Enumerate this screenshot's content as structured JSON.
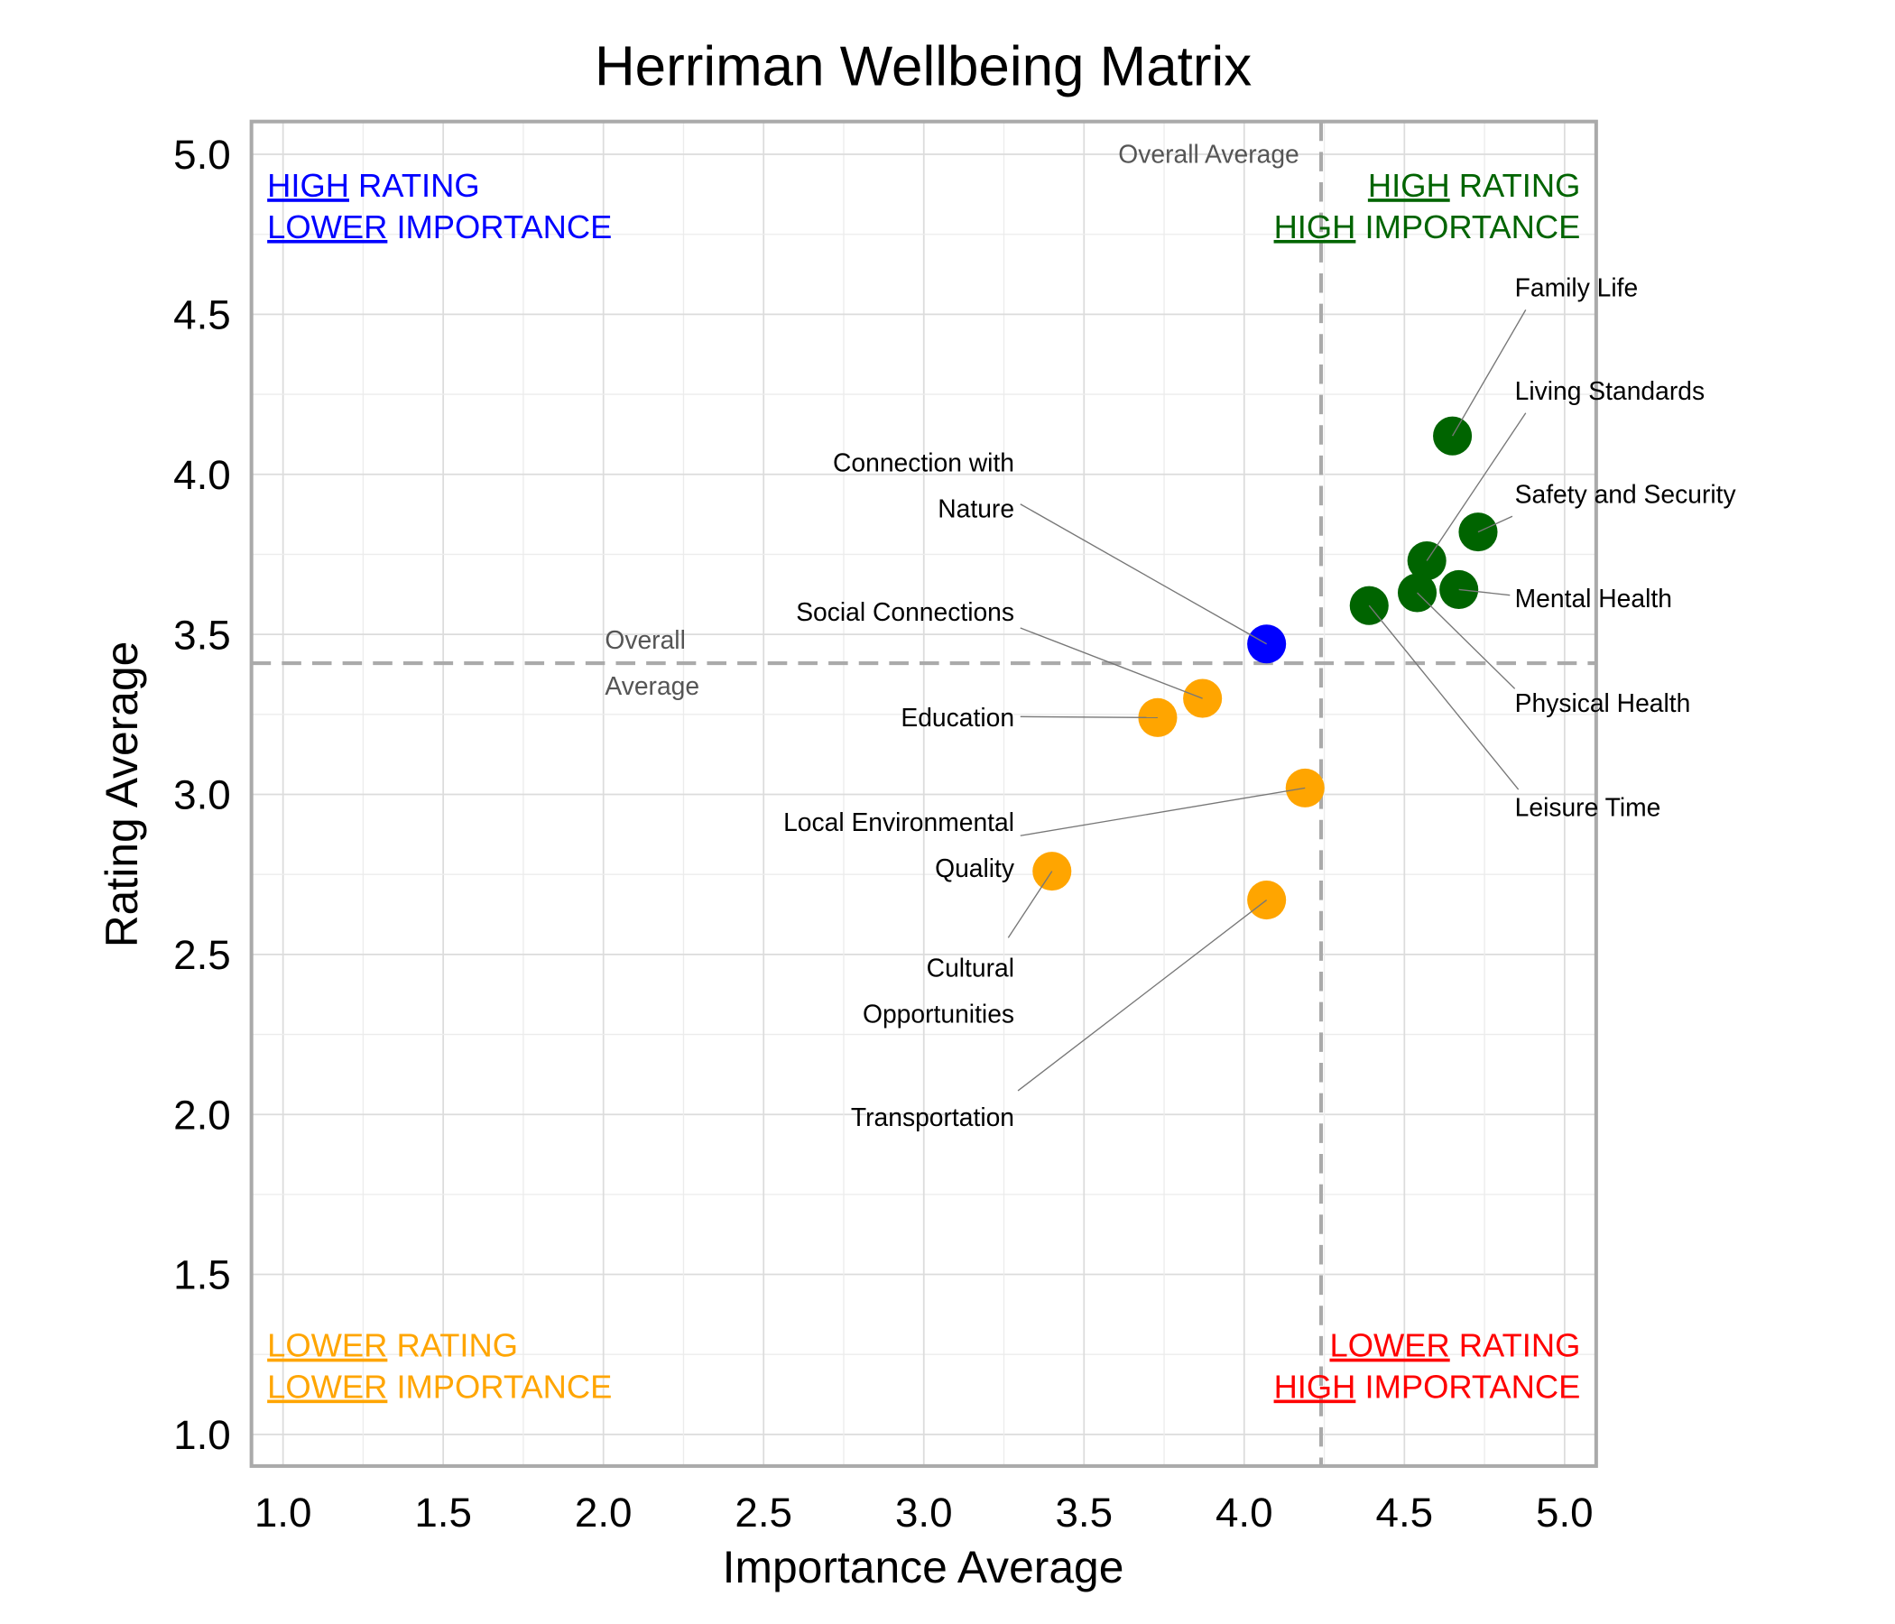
{
  "chart_data": {
    "type": "scatter",
    "title": "Herriman Wellbeing Matrix",
    "xlabel": "Importance Average",
    "ylabel": "Rating Average",
    "xlim": [
      0.9,
      5.1
    ],
    "ylim": [
      0.9,
      5.1
    ],
    "xticks": [
      "1.0",
      "1.5",
      "2.0",
      "2.5",
      "3.0",
      "3.5",
      "4.0",
      "4.5",
      "5.0"
    ],
    "yticks": [
      "1.0",
      "1.5",
      "2.0",
      "2.5",
      "3.0",
      "3.5",
      "4.0",
      "4.5",
      "5.0"
    ],
    "grid": true,
    "reference_lines": {
      "x_average": 4.24,
      "y_average": 3.41,
      "x_average_label": "Overall Average",
      "y_average_label": [
        "Overall",
        "Average"
      ]
    },
    "quadrants": {
      "top_left": {
        "lines": [
          [
            "HIGH",
            " RATING"
          ],
          [
            "LOWER",
            " IMPORTANCE"
          ]
        ],
        "color": "#0000ff"
      },
      "top_right": {
        "lines": [
          [
            "HIGH",
            " RATING"
          ],
          [
            "HIGH",
            " IMPORTANCE"
          ]
        ],
        "color": "#006400"
      },
      "bottom_left": {
        "lines": [
          [
            "LOWER",
            " RATING"
          ],
          [
            "LOWER",
            " IMPORTANCE"
          ]
        ],
        "color": "#ffa500"
      },
      "bottom_right": {
        "lines": [
          [
            "LOWER",
            " RATING"
          ],
          [
            "HIGH",
            " IMPORTANCE"
          ]
        ],
        "color": "#ff0000"
      }
    },
    "points": [
      {
        "label": [
          "Family Life"
        ],
        "x": 4.65,
        "y": 4.12,
        "color": "#006400"
      },
      {
        "label": [
          "Living Standards"
        ],
        "x": 4.57,
        "y": 3.73,
        "color": "#006400"
      },
      {
        "label": [
          "Safety and Security"
        ],
        "x": 4.73,
        "y": 3.82,
        "color": "#006400"
      },
      {
        "label": [
          "Mental Health"
        ],
        "x": 4.67,
        "y": 3.64,
        "color": "#006400"
      },
      {
        "label": [
          "Physical Health"
        ],
        "x": 4.54,
        "y": 3.63,
        "color": "#006400"
      },
      {
        "label": [
          "Leisure Time"
        ],
        "x": 4.39,
        "y": 3.59,
        "color": "#006400"
      },
      {
        "label": [
          "Connection with",
          "Nature"
        ],
        "x": 4.07,
        "y": 3.47,
        "color": "#0000ff"
      },
      {
        "label": [
          "Social Connections"
        ],
        "x": 3.87,
        "y": 3.3,
        "color": "#ffa500"
      },
      {
        "label": [
          "Education"
        ],
        "x": 3.73,
        "y": 3.24,
        "color": "#ffa500"
      },
      {
        "label": [
          "Local Environmental",
          "Quality"
        ],
        "x": 4.19,
        "y": 3.02,
        "color": "#ffa500"
      },
      {
        "label": [
          "Cultural",
          "Opportunities"
        ],
        "x": 3.4,
        "y": 2.76,
        "color": "#ffa500"
      },
      {
        "label": [
          "Transportation"
        ],
        "x": 4.07,
        "y": 2.67,
        "color": "#ffa500"
      }
    ]
  }
}
